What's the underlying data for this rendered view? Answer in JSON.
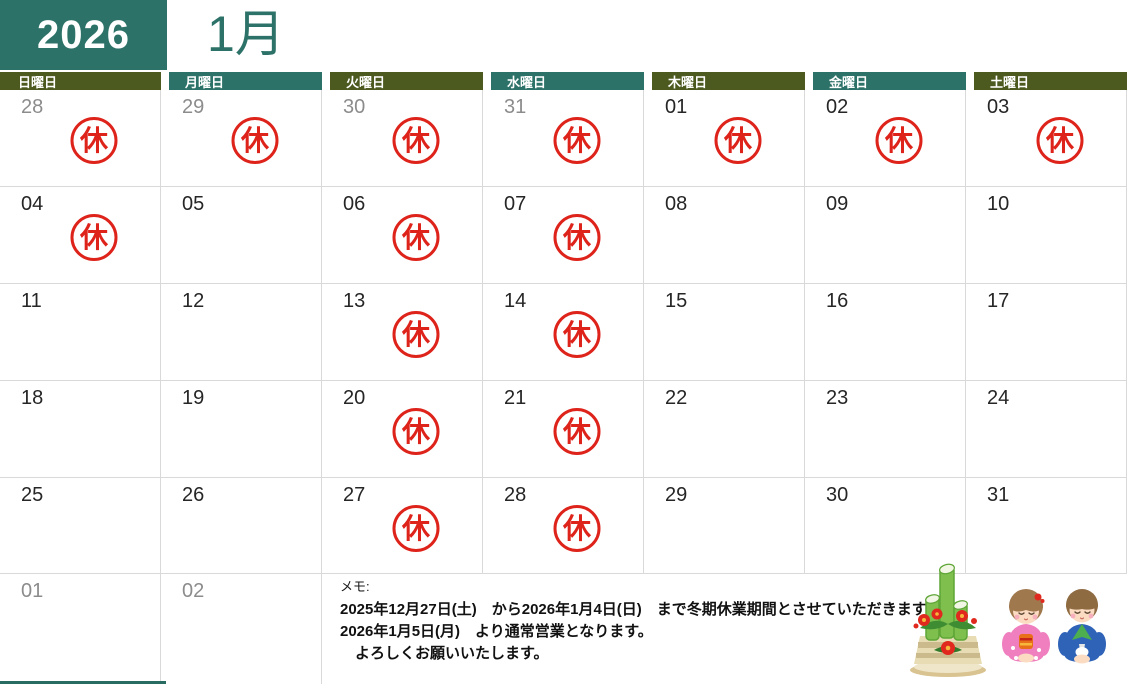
{
  "header": {
    "year": "2026",
    "month": "1月"
  },
  "weekdays": [
    {
      "label": "日曜日",
      "variant": "olive"
    },
    {
      "label": "月曜日",
      "variant": "teal"
    },
    {
      "label": "火曜日",
      "variant": "olive"
    },
    {
      "label": "水曜日",
      "variant": "teal"
    },
    {
      "label": "木曜日",
      "variant": "olive"
    },
    {
      "label": "金曜日",
      "variant": "teal"
    },
    {
      "label": "土曜日",
      "variant": "olive"
    }
  ],
  "stamp": {
    "char": "休",
    "meaning": "closed-day stamp"
  },
  "grid": {
    "rows": [
      {
        "cells": [
          {
            "day": "28",
            "muted": true,
            "closed": true
          },
          {
            "day": "29",
            "muted": true,
            "closed": true
          },
          {
            "day": "30",
            "muted": true,
            "closed": true
          },
          {
            "day": "31",
            "muted": true,
            "closed": true
          },
          {
            "day": "01",
            "closed": true
          },
          {
            "day": "02",
            "closed": true
          },
          {
            "day": "03",
            "closed": true
          }
        ]
      },
      {
        "cells": [
          {
            "day": "04",
            "closed": true
          },
          {
            "day": "05"
          },
          {
            "day": "06",
            "closed": true
          },
          {
            "day": "07",
            "closed": true
          },
          {
            "day": "08"
          },
          {
            "day": "09"
          },
          {
            "day": "10"
          }
        ]
      },
      {
        "cells": [
          {
            "day": "11"
          },
          {
            "day": "12"
          },
          {
            "day": "13",
            "closed": true
          },
          {
            "day": "14",
            "closed": true
          },
          {
            "day": "15"
          },
          {
            "day": "16"
          },
          {
            "day": "17"
          }
        ]
      },
      {
        "cells": [
          {
            "day": "18"
          },
          {
            "day": "19"
          },
          {
            "day": "20",
            "closed": true
          },
          {
            "day": "21",
            "closed": true
          },
          {
            "day": "22"
          },
          {
            "day": "23"
          },
          {
            "day": "24"
          }
        ]
      },
      {
        "cells": [
          {
            "day": "25"
          },
          {
            "day": "26"
          },
          {
            "day": "27",
            "closed": true
          },
          {
            "day": "28",
            "closed": true
          },
          {
            "day": "29"
          },
          {
            "day": "30"
          },
          {
            "day": "31"
          }
        ]
      },
      {
        "cells": [
          {
            "day": "01",
            "muted": true
          },
          {
            "day": "02",
            "muted": true
          },
          {
            "memo": true
          }
        ]
      }
    ]
  },
  "memo": {
    "heading": "メモ:",
    "lines": [
      "2025年12月27日(土)　から2026年1月4日(日)　まで冬期休業期間とさせていただきます",
      "2026年1月5日(月)　より通常営業となります。",
      "　よろしくお願いいたします。"
    ]
  },
  "illustration": {
    "items": [
      "kadomatsu",
      "bowing-girl-in-pink-kimono",
      "bowing-boy-in-blue-kimono"
    ]
  },
  "colors": {
    "teal": "#2D7268",
    "olive": "#4C5A20",
    "stamp_red": "#DE231B",
    "current_day_text": "#262626",
    "other_month_text": "#8C8C8C",
    "grid_line": "#D9D9D9",
    "bottom_border": "#286B60"
  }
}
